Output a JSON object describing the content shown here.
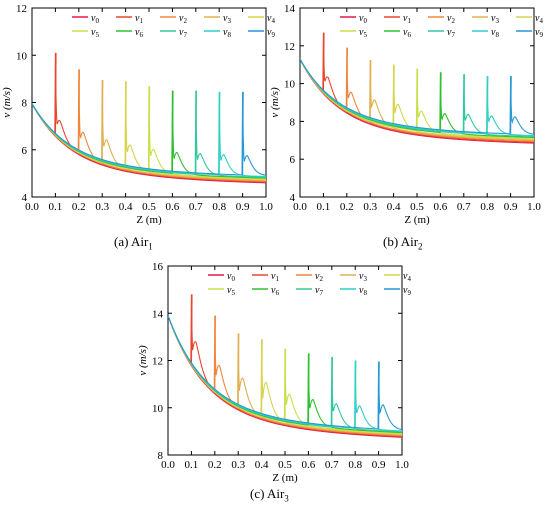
{
  "colors": {
    "v0": "#e6194b",
    "v1": "#e8472e",
    "v2": "#f0873c",
    "v3": "#e0b050",
    "v4": "#d7d44a",
    "v5": "#c8e04a",
    "v6": "#2fc02f",
    "v7": "#33c9a0",
    "v8": "#2ecfc4",
    "v9": "#2899d4"
  },
  "chart_data": [
    {
      "type": "line",
      "caption": {
        "prefix": "(a) Air",
        "sub": "1"
      },
      "xlabel": "Z (m)",
      "ylabel": "v (m/s)",
      "xlim": [
        0.0,
        1.0
      ],
      "ylim": [
        4,
        12
      ],
      "xticks": [
        "0.0",
        "0.1",
        "0.2",
        "0.3",
        "0.4",
        "0.5",
        "0.6",
        "0.7",
        "0.8",
        "0.9",
        "1.0"
      ],
      "yticks": [
        "4",
        "6",
        "8",
        "10",
        "12"
      ],
      "base": {
        "start": 7.95,
        "end_v0": 4.6,
        "end_v9": 4.9
      },
      "legend": [
        [
          "v",
          "0"
        ],
        [
          "v",
          "1"
        ],
        [
          "v",
          "2"
        ],
        [
          "v",
          "3"
        ],
        [
          "v",
          "4"
        ],
        [
          "v",
          "5"
        ],
        [
          "v",
          "6"
        ],
        [
          "v",
          "7"
        ],
        [
          "v",
          "8"
        ],
        [
          "v",
          "9"
        ]
      ],
      "series": [
        {
          "legend_index": 0,
          "disturb_at": null,
          "peak": null,
          "hump": null
        },
        {
          "legend_index": 1,
          "disturb_at": 0.1,
          "peak": 10.1,
          "hump": 7.5
        },
        {
          "legend_index": 2,
          "disturb_at": 0.2,
          "peak": 9.4,
          "hump": 6.95
        },
        {
          "legend_index": 3,
          "disturb_at": 0.3,
          "peak": 8.95,
          "hump": 6.6
        },
        {
          "legend_index": 4,
          "disturb_at": 0.4,
          "peak": 8.9,
          "hump": 6.35
        },
        {
          "legend_index": 5,
          "disturb_at": 0.5,
          "peak": 8.7,
          "hump": 6.15
        },
        {
          "legend_index": 6,
          "disturb_at": 0.6,
          "peak": 8.5,
          "hump": 6.0
        },
        {
          "legend_index": 7,
          "disturb_at": 0.7,
          "peak": 8.5,
          "hump": 5.95
        },
        {
          "legend_index": 8,
          "disturb_at": 0.8,
          "peak": 8.45,
          "hump": 5.9
        },
        {
          "legend_index": 9,
          "disturb_at": 0.9,
          "peak": 8.45,
          "hump": 5.85
        }
      ]
    },
    {
      "type": "line",
      "caption": {
        "prefix": "(b) Air",
        "sub": "2"
      },
      "xlabel": "Z (m)",
      "ylabel": "v (m/s)",
      "xlim": [
        0.0,
        1.0
      ],
      "ylim": [
        4,
        14
      ],
      "xticks": [
        "0.0",
        "0.1",
        "0.2",
        "0.3",
        "0.4",
        "0.5",
        "0.6",
        "0.7",
        "0.8",
        "0.9",
        "1.0"
      ],
      "yticks": [
        "4",
        "6",
        "8",
        "10",
        "12",
        "14"
      ],
      "base": {
        "start": 11.3,
        "end_v0": 6.85,
        "end_v9": 7.3
      },
      "legend": [
        [
          "v",
          "0"
        ],
        [
          "v",
          "1"
        ],
        [
          "v",
          "2"
        ],
        [
          "v",
          "3"
        ],
        [
          "v",
          "4"
        ],
        [
          "v",
          "5"
        ],
        [
          "v",
          "6"
        ],
        [
          "v",
          "7"
        ],
        [
          "v",
          "8"
        ],
        [
          "v",
          "9"
        ]
      ],
      "series": [
        {
          "legend_index": 0,
          "disturb_at": null,
          "peak": null,
          "hump": null
        },
        {
          "legend_index": 1,
          "disturb_at": 0.1,
          "peak": 12.7,
          "hump": 10.7
        },
        {
          "legend_index": 2,
          "disturb_at": 0.2,
          "peak": 11.9,
          "hump": 9.8
        },
        {
          "legend_index": 3,
          "disturb_at": 0.3,
          "peak": 11.25,
          "hump": 9.35
        },
        {
          "legend_index": 4,
          "disturb_at": 0.4,
          "peak": 11.0,
          "hump": 9.1
        },
        {
          "legend_index": 5,
          "disturb_at": 0.5,
          "peak": 10.8,
          "hump": 8.7
        },
        {
          "legend_index": 6,
          "disturb_at": 0.6,
          "peak": 10.6,
          "hump": 8.55
        },
        {
          "legend_index": 7,
          "disturb_at": 0.7,
          "peak": 10.5,
          "hump": 8.5
        },
        {
          "legend_index": 8,
          "disturb_at": 0.8,
          "peak": 10.4,
          "hump": 8.4
        },
        {
          "legend_index": 9,
          "disturb_at": 0.9,
          "peak": 10.4,
          "hump": 8.35
        }
      ]
    },
    {
      "type": "line",
      "caption": {
        "prefix": "(c) Air",
        "sub": "3"
      },
      "xlabel": "Z (m)",
      "ylabel": "v (m/s)",
      "xlim": [
        0.0,
        1.0
      ],
      "ylim": [
        8,
        16
      ],
      "xticks": [
        "0.0",
        "0.1",
        "0.2",
        "0.3",
        "0.4",
        "0.5",
        "0.6",
        "0.7",
        "0.8",
        "0.9",
        "1.0"
      ],
      "yticks": [
        "8",
        "10",
        "12",
        "14",
        "16"
      ],
      "base": {
        "start": 13.9,
        "end_v0": 8.75,
        "end_v9": 9.05
      },
      "legend": [
        [
          "v",
          "0"
        ],
        [
          "v",
          "1"
        ],
        [
          "v",
          "2"
        ],
        [
          "v",
          "3"
        ],
        [
          "v",
          "4"
        ],
        [
          "v",
          "5"
        ],
        [
          "v",
          "6"
        ],
        [
          "v",
          "7"
        ],
        [
          "v",
          "8"
        ],
        [
          "v",
          "9"
        ]
      ],
      "series": [
        {
          "legend_index": 0,
          "disturb_at": null,
          "peak": null,
          "hump": null
        },
        {
          "legend_index": 1,
          "disturb_at": 0.1,
          "peak": 14.8,
          "hump": 13.2
        },
        {
          "legend_index": 2,
          "disturb_at": 0.2,
          "peak": 13.9,
          "hump": 12.1
        },
        {
          "legend_index": 3,
          "disturb_at": 0.3,
          "peak": 13.15,
          "hump": 11.5
        },
        {
          "legend_index": 4,
          "disturb_at": 0.4,
          "peak": 12.9,
          "hump": 11.3
        },
        {
          "legend_index": 5,
          "disturb_at": 0.5,
          "peak": 12.5,
          "hump": 10.75
        },
        {
          "legend_index": 6,
          "disturb_at": 0.6,
          "peak": 12.3,
          "hump": 10.5
        },
        {
          "legend_index": 7,
          "disturb_at": 0.7,
          "peak": 12.15,
          "hump": 10.3
        },
        {
          "legend_index": 8,
          "disturb_at": 0.8,
          "peak": 12.0,
          "hump": 10.2
        },
        {
          "legend_index": 9,
          "disturb_at": 0.9,
          "peak": 11.95,
          "hump": 10.25
        }
      ]
    }
  ]
}
